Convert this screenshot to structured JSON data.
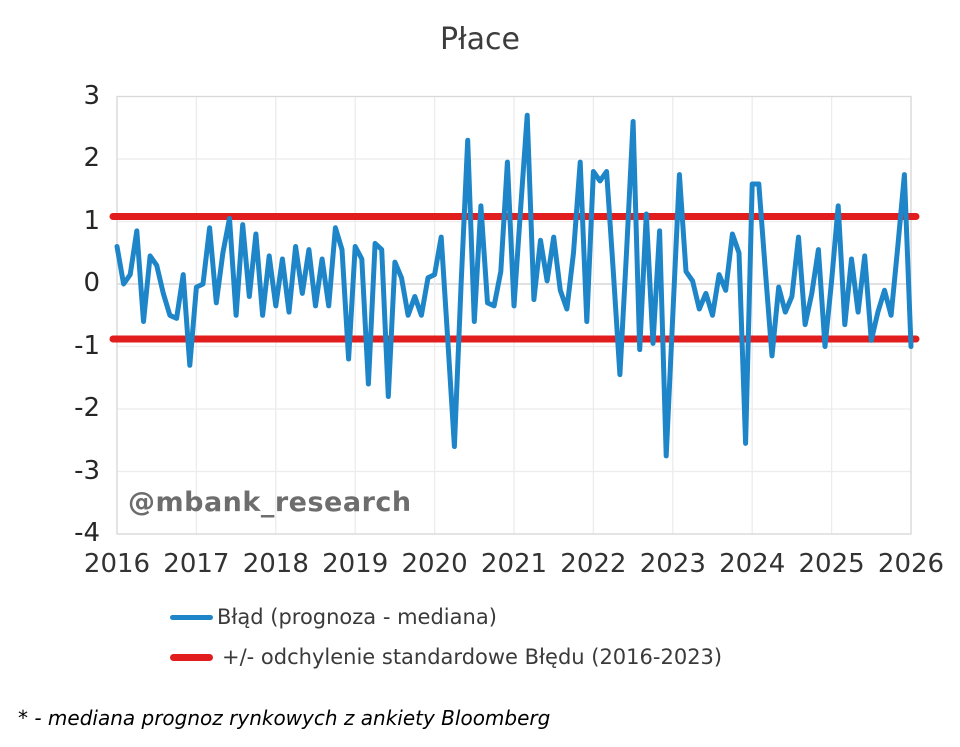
{
  "title": "Płace",
  "watermark": "@mbank_research",
  "footnote": "* - mediana prognoz rynkowych z ankiety Bloomberg",
  "legend": {
    "items": [
      {
        "label": "Błąd (prognoza - mediana)",
        "color": "#1e86c8"
      },
      {
        "label": "+/- odchylenie standardowe Błędu (2016-2023)",
        "color": "#e11d1d"
      }
    ]
  },
  "colors": {
    "series_blue": "#1e86c8",
    "band_red": "#e11d1d",
    "grid": "#ececec",
    "zero_line": "#cfcfcf",
    "plot_border": "#d9d9d9",
    "title_text": "#3c3c3c",
    "tick_text": "#262626",
    "watermark_text": "#6d6d6d"
  },
  "chart_data": {
    "type": "line",
    "title": "Płace",
    "frequency": "monthly",
    "x_start": "2016-01",
    "x_end": "2026-01",
    "series": [
      {
        "name": "Błąd (prognoza - mediana)",
        "color": "#1e86c8",
        "values": [
          0.6,
          0.0,
          0.15,
          0.85,
          -0.6,
          0.45,
          0.3,
          -0.15,
          -0.5,
          -0.55,
          0.15,
          -1.3,
          -0.05,
          0.0,
          0.9,
          -0.3,
          0.5,
          1.05,
          -0.5,
          0.95,
          -0.2,
          0.8,
          -0.5,
          0.45,
          -0.35,
          0.4,
          -0.45,
          0.6,
          -0.15,
          0.55,
          -0.35,
          0.4,
          -0.35,
          0.9,
          0.55,
          -1.2,
          0.6,
          0.4,
          -1.6,
          0.65,
          0.55,
          -1.8,
          0.35,
          0.1,
          -0.5,
          -0.2,
          -0.5,
          0.1,
          0.15,
          0.75,
          -0.9,
          -2.6,
          0.0,
          2.3,
          -0.6,
          1.25,
          -0.3,
          -0.35,
          0.2,
          1.95,
          -0.35,
          1.2,
          2.7,
          -0.25,
          0.7,
          0.05,
          0.75,
          -0.1,
          -0.4,
          0.5,
          1.95,
          -0.6,
          1.8,
          1.65,
          1.8,
          0.2,
          -1.45,
          0.5,
          2.6,
          -1.05,
          1.12,
          -0.95,
          0.85,
          -2.75,
          -0.5,
          1.75,
          0.2,
          0.05,
          -0.4,
          -0.15,
          -0.5,
          0.15,
          -0.1,
          0.8,
          0.5,
          -2.55,
          1.6,
          1.6,
          0.2,
          -1.15,
          -0.05,
          -0.45,
          -0.2,
          0.75,
          -0.65,
          -0.15,
          0.55,
          -1.0,
          0.05,
          1.25,
          -0.65,
          0.4,
          -0.45,
          0.45,
          -0.9,
          -0.45,
          -0.1,
          -0.5,
          0.6,
          1.75,
          -1.0
        ]
      }
    ],
    "reference_lines": [
      {
        "name": "+ odchylenie standardowe Błędu (2016-2023)",
        "value": 1.08,
        "color": "#e11d1d"
      },
      {
        "name": "- odchylenie standardowe Błędu (2016-2023)",
        "value": -0.88,
        "color": "#e11d1d"
      }
    ],
    "xticks": [
      "2016",
      "2017",
      "2018",
      "2019",
      "2020",
      "2021",
      "2022",
      "2023",
      "2024",
      "2025",
      "2026"
    ],
    "yticks": [
      3,
      2,
      1,
      0,
      -1,
      -2,
      -3,
      -4
    ],
    "ylim": [
      -4,
      3
    ],
    "xlabel": "",
    "ylabel": "",
    "grid": true,
    "legend_position": "bottom"
  }
}
